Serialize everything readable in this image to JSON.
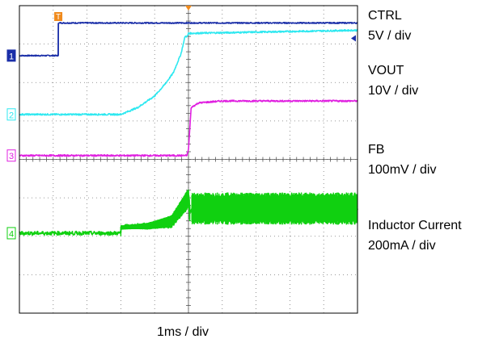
{
  "chart_data": {
    "type": "line",
    "time_scale": "1ms / div",
    "x_divisions": 10,
    "y_divisions": 8,
    "x_range_ms": [
      0,
      10
    ],
    "y_range_div": [
      0,
      8
    ],
    "grid": true,
    "trigger_time_ms": 5.0,
    "channels": [
      {
        "id": "1",
        "marker": "1",
        "name": "CTRL",
        "scale": "5V / div",
        "color": "#1a2ea8",
        "points": [
          [
            0.0,
            6.7
          ],
          [
            1.15,
            6.7
          ],
          [
            1.15,
            7.55
          ],
          [
            10.0,
            7.55
          ]
        ]
      },
      {
        "id": "2",
        "marker": "2",
        "name": "VOUT",
        "scale": "10V / div",
        "color": "#2ee8f0",
        "points": [
          [
            0.0,
            5.17
          ],
          [
            3.0,
            5.17
          ],
          [
            3.5,
            5.35
          ],
          [
            4.0,
            5.65
          ],
          [
            4.3,
            5.95
          ],
          [
            4.55,
            6.25
          ],
          [
            4.78,
            6.75
          ],
          [
            4.9,
            7.2
          ],
          [
            4.97,
            7.2
          ],
          [
            5.0,
            7.28
          ],
          [
            10.0,
            7.36
          ]
        ]
      },
      {
        "id": "3",
        "marker": "3",
        "name": "FB",
        "scale": "100mV / div",
        "color": "#e020e0",
        "points": [
          [
            0.0,
            4.1
          ],
          [
            4.95,
            4.1
          ],
          [
            5.0,
            4.25
          ],
          [
            5.08,
            5.35
          ],
          [
            5.3,
            5.47
          ],
          [
            6.0,
            5.52
          ],
          [
            10.0,
            5.52
          ]
        ]
      },
      {
        "id": "4",
        "marker": "4",
        "name": "Inductor Current",
        "scale": "200mA / div",
        "color": "#10d010",
        "points": [
          [
            0.0,
            2.08
          ],
          [
            3.0,
            2.08
          ],
          [
            3.0,
            2.25
          ],
          [
            3.8,
            2.3
          ],
          [
            4.5,
            2.45
          ],
          [
            4.85,
            2.9
          ],
          [
            5.0,
            3.1
          ],
          [
            5.05,
            2.6
          ],
          [
            5.1,
            2.72
          ],
          [
            10.0,
            2.72
          ]
        ]
      }
    ]
  }
}
